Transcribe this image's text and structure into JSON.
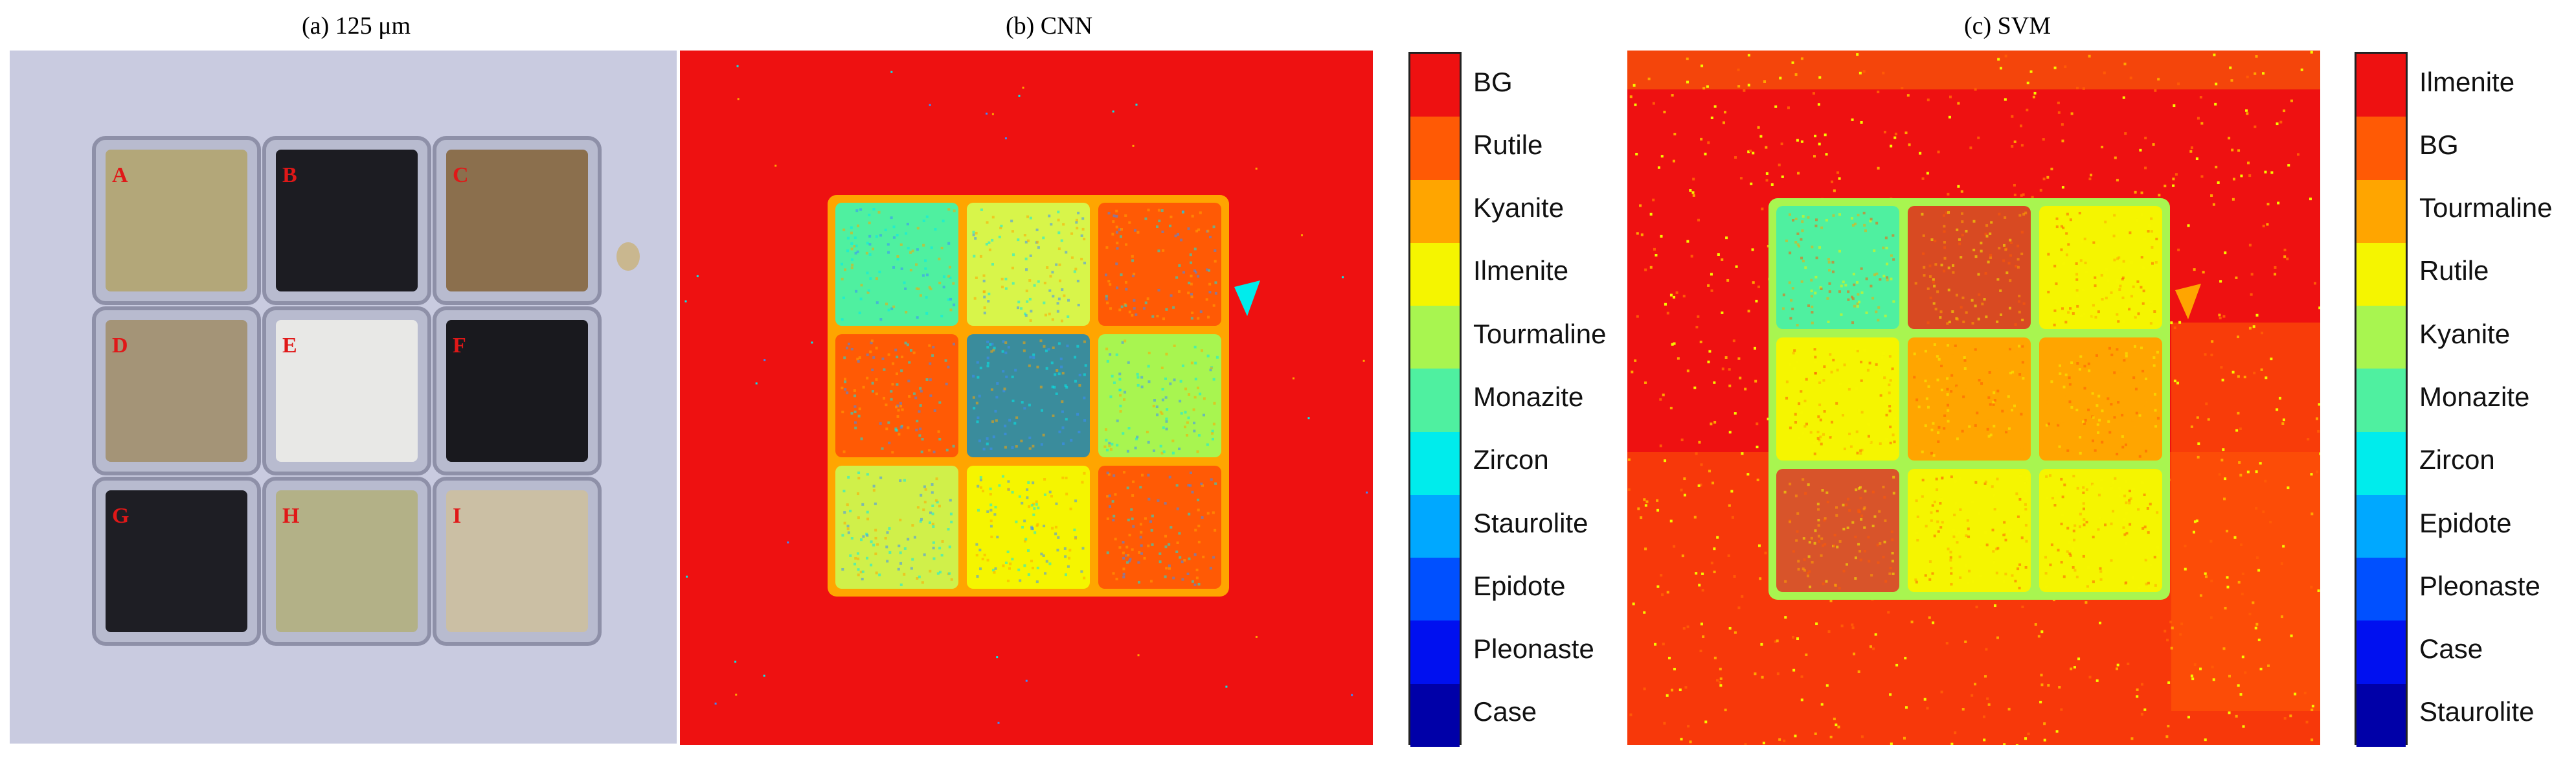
{
  "figure": {
    "panel_a_title": "(a) 125 μm",
    "panel_b_title": "(b) CNN",
    "panel_c_title": "(c) SVM",
    "sample_letters": [
      "A",
      "B",
      "C",
      "D",
      "E",
      "F",
      "G",
      "H",
      "I"
    ]
  },
  "legend_cnn": {
    "classes": [
      {
        "label": "BG",
        "color": "#ee1111"
      },
      {
        "label": "Rutile",
        "color": "#ff5a05"
      },
      {
        "label": "Kyanite",
        "color": "#ffa500"
      },
      {
        "label": "Ilmenite",
        "color": "#f5f500"
      },
      {
        "label": "Tourmaline",
        "color": "#a8f550"
      },
      {
        "label": "Monazite",
        "color": "#4ff0a0"
      },
      {
        "label": "Zircon",
        "color": "#00ecec"
      },
      {
        "label": "Staurolite",
        "color": "#00a8ff"
      },
      {
        "label": "Epidote",
        "color": "#0050ff"
      },
      {
        "label": "Pleonaste",
        "color": "#0010f0"
      },
      {
        "label": "Case",
        "color": "#0000a8"
      }
    ]
  },
  "legend_svm": {
    "classes": [
      {
        "label": "Ilmenite",
        "color": "#ee1111"
      },
      {
        "label": "BG",
        "color": "#ff5a05"
      },
      {
        "label": "Tourmaline",
        "color": "#ffa500"
      },
      {
        "label": "Rutile",
        "color": "#f5f500"
      },
      {
        "label": "Kyanite",
        "color": "#a8f550"
      },
      {
        "label": "Monazite",
        "color": "#4ff0a0"
      },
      {
        "label": "Zircon",
        "color": "#00ecec"
      },
      {
        "label": "Epidote",
        "color": "#00a8ff"
      },
      {
        "label": "Pleonaste",
        "color": "#0050ff"
      },
      {
        "label": "Case",
        "color": "#0010f0"
      },
      {
        "label": "Staurolite",
        "color": "#0000a8"
      }
    ]
  },
  "colors": {
    "photo_background": "#c9cbe0",
    "case_frame": "#8e90a8",
    "red": "#ee1111",
    "orange": "#ff5a05",
    "amber": "#ffa500",
    "yellow": "#f5f500",
    "lightgreen": "#a8f550",
    "teal": "#4ff0a0",
    "cyan": "#00ecec",
    "blue": "#3a8cff"
  },
  "photo_samples": [
    {
      "color": "#b3a779"
    },
    {
      "color": "#1c1c22"
    },
    {
      "color": "#8b6f4d"
    },
    {
      "color": "#a49477"
    },
    {
      "color": "#e8e8e6"
    },
    {
      "color": "#19191e"
    },
    {
      "color": "#1e1e24"
    },
    {
      "color": "#b3b187"
    },
    {
      "color": "#cbbfa4"
    }
  ],
  "cnn_cells": [
    {
      "color": "#4ff0a0"
    },
    {
      "color": "#d8f54a"
    },
    {
      "color": "#ff5a05"
    },
    {
      "color": "#ff5a05"
    },
    {
      "color": "#3a8c9c"
    },
    {
      "color": "#a8f550"
    },
    {
      "color": "#d0f04a"
    },
    {
      "color": "#f5f500"
    },
    {
      "color": "#ff5a05"
    }
  ],
  "svm_cells": [
    {
      "color": "#4ff0a0"
    },
    {
      "color": "#d84a22"
    },
    {
      "color": "#f5f500"
    },
    {
      "color": "#f5f500"
    },
    {
      "color": "#ffa500"
    },
    {
      "color": "#ffa500"
    },
    {
      "color": "#d8542a"
    },
    {
      "color": "#f5f500"
    },
    {
      "color": "#f5f500"
    }
  ]
}
